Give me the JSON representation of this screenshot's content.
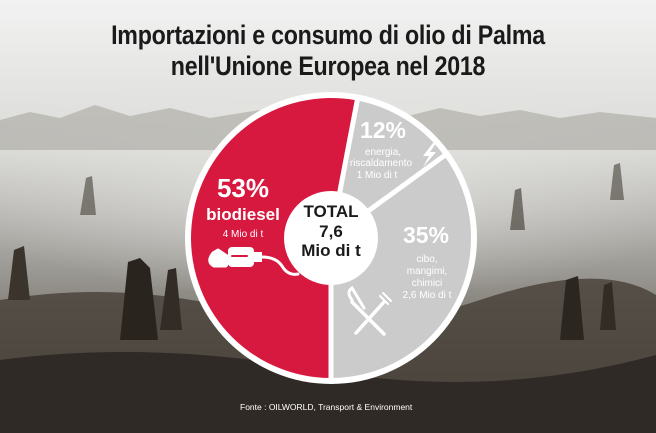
{
  "title_line1": "Importazioni e consumo di olio di Palma",
  "title_line2": "nell'Unione Europea nel 2018",
  "source": "Fonte : OILWORLD, Transport & Environment",
  "colors": {
    "biodiesel": "#d7183f",
    "other": "#cbcbcb",
    "ring": "#ffffff",
    "center": "#ffffff",
    "title": "#1a1a1a"
  },
  "chart_data": {
    "type": "pie",
    "title": "Importazioni e consumo di olio di Palma nell'Unione Europea nel 2018",
    "total": {
      "label": "TOTAL",
      "value": "7,6",
      "unit": "Mio di t"
    },
    "slices": [
      {
        "key": "biodiesel",
        "label": "biodiesel",
        "percent": 53,
        "percent_text": "53%",
        "amount_text": "4 Mio di t",
        "color": "#d7183f",
        "icon": "fuel-nozzle-icon"
      },
      {
        "key": "energia",
        "label": "energia, riscaldamento",
        "label_lines": [
          "energia,",
          "riscaldamento"
        ],
        "percent": 12,
        "percent_text": "12%",
        "amount_text": "1 Mio di t",
        "color": "#cbcbcb",
        "icon": "lightning-icon"
      },
      {
        "key": "cibo",
        "label": "cibo, mangimi, chimici",
        "label_lines": [
          "cibo,",
          "mangimi,",
          "chimici"
        ],
        "percent": 35,
        "percent_text": "35%",
        "amount_text": "2,6 Mio di t",
        "color": "#cbcbcb",
        "icon": "fork-knife-icon"
      }
    ]
  }
}
